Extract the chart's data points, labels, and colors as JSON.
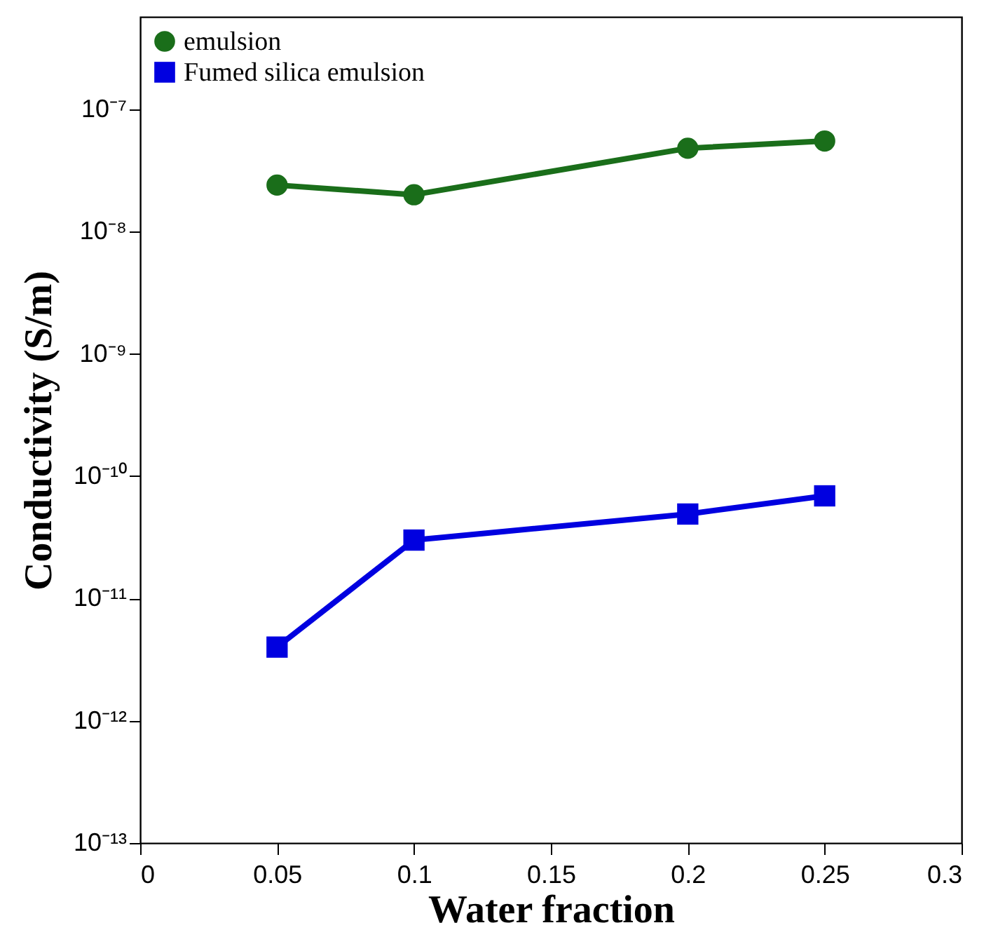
{
  "chart_data": {
    "type": "line",
    "xlabel": "Water fraction",
    "ylabel": "Conductivity (S/m)",
    "x": [
      0.05,
      0.1,
      0.2,
      0.25
    ],
    "series": [
      {
        "name": "emulsion",
        "color": "#1a6e1a",
        "marker": "circle",
        "values": [
          2.4e-08,
          2e-08,
          4.8e-08,
          5.5e-08
        ]
      },
      {
        "name": "Fumed silica emulsion",
        "color": "#0000e0",
        "marker": "square",
        "values": [
          4e-12,
          3e-11,
          4.9e-11,
          6.9e-11
        ]
      }
    ],
    "log": "y",
    "xlim": [
      0,
      0.3
    ],
    "xticks": [
      0,
      0.05,
      0.1,
      0.15,
      0.2,
      0.25,
      0.3
    ],
    "ylim": [
      1e-13,
      5.7e-07
    ],
    "yticks": [
      {
        "value": 1e-13,
        "label": "10⁻¹³"
      },
      {
        "value": 1e-12,
        "label": "10⁻¹²"
      },
      {
        "value": 1e-11,
        "label": "10⁻¹¹"
      },
      {
        "value": 1e-10,
        "label": "10⁻¹⁰"
      },
      {
        "value": 1e-09,
        "label": "10⁻⁹"
      },
      {
        "value": 1e-08,
        "label": "10⁻⁸"
      },
      {
        "value": 1e-07,
        "label": "10⁻⁷"
      }
    ],
    "grid": false,
    "legend": "top left",
    "line_style": "solid"
  }
}
